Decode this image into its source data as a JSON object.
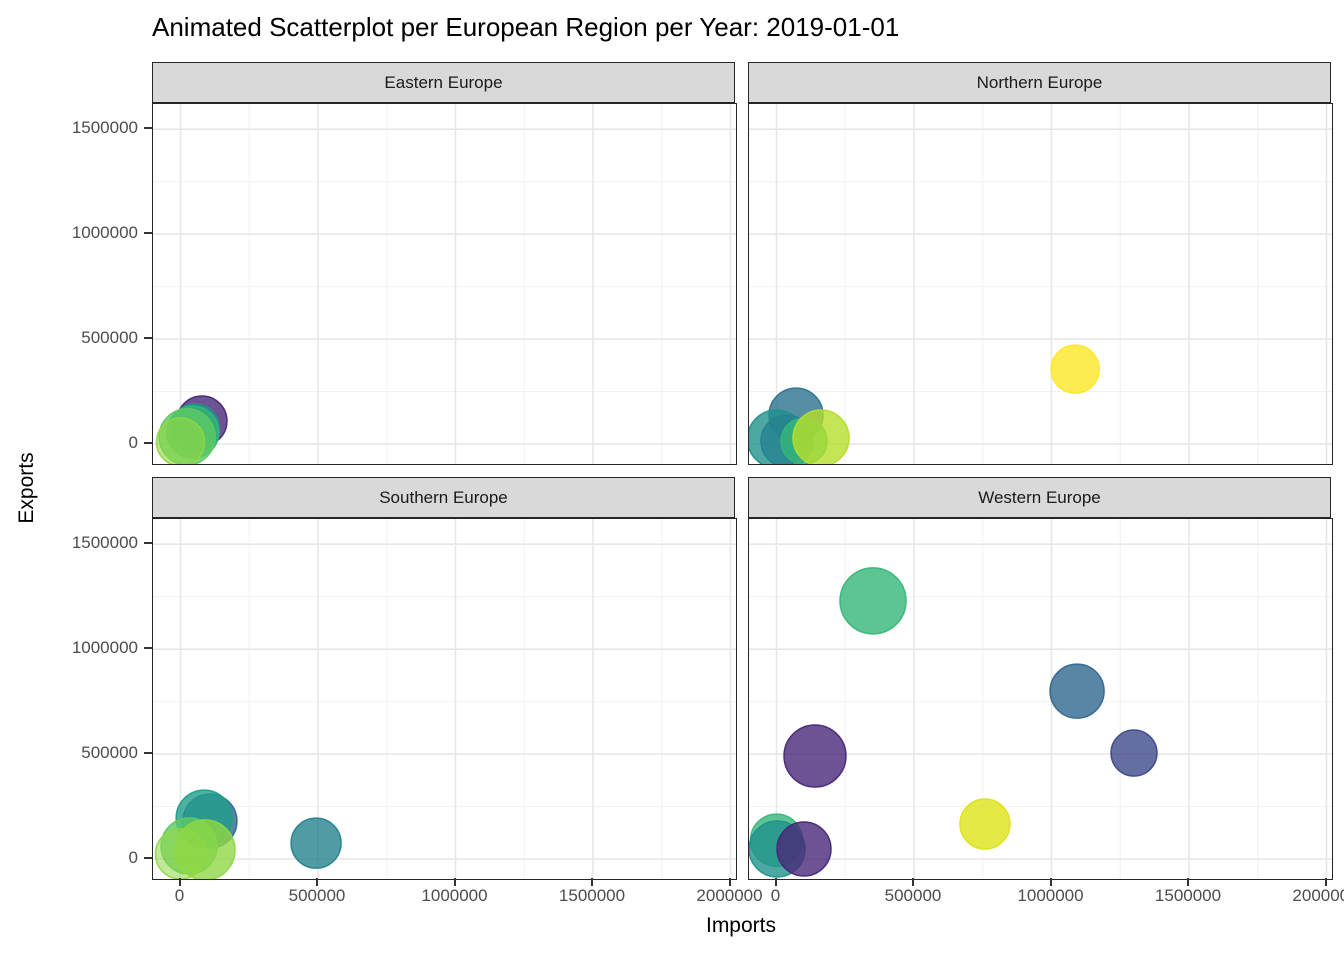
{
  "title": "Animated Scatterplot per European Region per Year: 2019-01-01",
  "chart_data": {
    "type": "scatter",
    "title": "Animated Scatterplot per European Region per Year: 2019-01-01",
    "xlabel": "Imports",
    "ylabel": "Exports",
    "x_ticks": [
      0,
      500000,
      1000000,
      1500000,
      2000000
    ],
    "y_ticks": [
      0,
      500000,
      1000000,
      1500000
    ],
    "x_minor_ticks": [
      250000,
      750000,
      1250000,
      1750000
    ],
    "y_minor_ticks": [
      250000,
      750000,
      1250000
    ],
    "xlim": [
      -100000,
      2020000
    ],
    "ylim": [
      -95000,
      1620000
    ],
    "grid": "major+minor",
    "legend": "none",
    "point_opacity": 0.8,
    "style": {
      "strip_bg": "#d9d9d9",
      "panel_border": "#262626",
      "grid_major": "#e7e7e7",
      "grid_minor": "#f2f2f2",
      "tick_color": "#333333",
      "tick_label_color": "#4d4d4d"
    },
    "facets": [
      {
        "label": "Eastern Europe",
        "row": 0,
        "col": 0,
        "points": [
          {
            "imports": 78000,
            "exports": 110000,
            "r": 25,
            "color": "#482878"
          },
          {
            "imports": 53000,
            "exports": 77000,
            "r": 24,
            "color": "#21918c"
          },
          {
            "imports": 45000,
            "exports": 57000,
            "r": 26,
            "color": "#35b779"
          },
          {
            "imports": 24000,
            "exports": 34000,
            "r": 28,
            "color": "#5ec962"
          },
          {
            "imports": 0,
            "exports": 10000,
            "r": 24,
            "color": "#90d743",
            "opacity": 0.6
          }
        ]
      },
      {
        "label": "Northern Europe",
        "row": 0,
        "col": 1,
        "points": [
          {
            "imports": 71000,
            "exports": 138000,
            "r": 27,
            "color": "#2c728e"
          },
          {
            "imports": 0,
            "exports": 24000,
            "r": 29,
            "color": "#21918c"
          },
          {
            "imports": 38000,
            "exports": 14000,
            "r": 26,
            "color": "#26828e"
          },
          {
            "imports": 100000,
            "exports": 14000,
            "r": 23,
            "color": "#35b779"
          },
          {
            "imports": 162000,
            "exports": 29000,
            "r": 28,
            "color": "#b5de2b"
          },
          {
            "imports": 1086000,
            "exports": 357000,
            "r": 24,
            "color": "#fde725"
          }
        ]
      },
      {
        "label": "Southern Europe",
        "row": 1,
        "col": 0,
        "points": [
          {
            "imports": 107000,
            "exports": 181000,
            "r": 27,
            "color": "#31688e"
          },
          {
            "imports": 86000,
            "exports": 195000,
            "r": 28,
            "color": "#1f9e89"
          },
          {
            "imports": 31000,
            "exports": 62000,
            "r": 28,
            "color": "#5ec962"
          },
          {
            "imports": 0,
            "exports": 24000,
            "r": 25,
            "color": "#90d743",
            "opacity": 0.55
          },
          {
            "imports": 89000,
            "exports": 43000,
            "r": 30,
            "color": "#90d743"
          },
          {
            "imports": 493000,
            "exports": 76000,
            "r": 25,
            "color": "#26828e"
          }
        ]
      },
      {
        "label": "Western Europe",
        "row": 1,
        "col": 1,
        "points": [
          {
            "imports": 351000,
            "exports": 1230000,
            "r": 33,
            "color": "#35b779"
          },
          {
            "imports": 1093000,
            "exports": 800000,
            "r": 27,
            "color": "#31688e"
          },
          {
            "imports": 140000,
            "exports": 491000,
            "r": 31,
            "color": "#482878"
          },
          {
            "imports": 1300000,
            "exports": 505000,
            "r": 23,
            "color": "#3e4a89"
          },
          {
            "imports": 758000,
            "exports": 167000,
            "r": 25,
            "color": "#dde318"
          },
          {
            "imports": 0,
            "exports": 90000,
            "r": 26,
            "color": "#35b779"
          },
          {
            "imports": 2000,
            "exports": 48000,
            "r": 28,
            "color": "#21918c"
          },
          {
            "imports": 100000,
            "exports": 48000,
            "r": 27,
            "color": "#482878"
          }
        ]
      }
    ]
  }
}
